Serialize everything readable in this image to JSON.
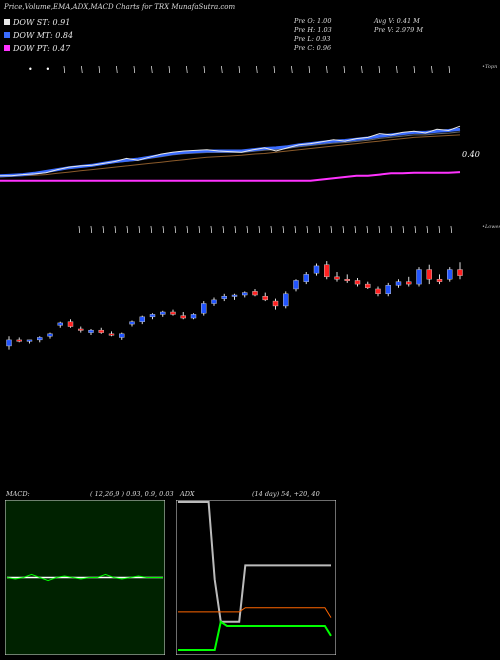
{
  "header": {
    "title": "Price,Volume,EMA,ADX,MACD Charts for TRX",
    "site": "MunafaSutra.com"
  },
  "legend": [
    {
      "label": "DOW ST: 0.91",
      "color": "#e8e8e8"
    },
    {
      "label": "DOW MT: 0.84",
      "color": "#3a6cff"
    },
    {
      "label": "DOW PT: 0.47",
      "color": "#ff33ff"
    }
  ],
  "stats": {
    "open": "Pre   O: 1.00",
    "high": "Pre   H: 1.03",
    "low": "Pre   L: 0.93",
    "close": "Pre   C: 0.96",
    "avg_vol": "Avg V: 0.41 M",
    "pre_vol": "Pre   V: 2.979 M"
  },
  "colors": {
    "up": "#2255ff",
    "down": "#ff2020",
    "st": "#e8e8e8",
    "mt": "#3a6cff",
    "pt": "#ff33ff",
    "ema_brown": "#8a5a2a",
    "macd_bg": "#002200",
    "macd_line": "#00ff00",
    "adx_plus": "#00ff00",
    "adx_minus": "#ff6600",
    "adx_line": "#bbbbbb"
  },
  "chart_data": [
    {
      "type": "line",
      "name": "ema-panel",
      "annotations": {
        "top_right": "•Topn",
        "value_label": "0.40"
      },
      "series": [
        {
          "name": "price",
          "values": [
            0.1,
            0.1,
            0.12,
            0.13,
            0.15,
            0.2,
            0.24,
            0.26,
            0.27,
            0.3,
            0.33,
            0.38,
            0.35,
            0.4,
            0.45,
            0.48,
            0.5,
            0.51,
            0.52,
            0.5,
            0.49,
            0.48,
            0.52,
            0.55,
            0.5,
            0.55,
            0.6,
            0.62,
            0.65,
            0.68,
            0.66,
            0.7,
            0.72,
            0.78,
            0.76,
            0.8,
            0.82,
            0.79,
            0.85,
            0.83,
            0.9
          ]
        },
        {
          "name": "ema-fast",
          "values": [
            0.1,
            0.11,
            0.12,
            0.14,
            0.17,
            0.2,
            0.23,
            0.25,
            0.27,
            0.3,
            0.33,
            0.35,
            0.37,
            0.4,
            0.43,
            0.46,
            0.48,
            0.49,
            0.5,
            0.5,
            0.5,
            0.5,
            0.52,
            0.54,
            0.55,
            0.57,
            0.6,
            0.62,
            0.64,
            0.66,
            0.67,
            0.69,
            0.71,
            0.74,
            0.76,
            0.78,
            0.8,
            0.8,
            0.82,
            0.83,
            0.85
          ]
        },
        {
          "name": "ema-slow",
          "values": [
            0.08,
            0.09,
            0.1,
            0.11,
            0.12,
            0.14,
            0.16,
            0.18,
            0.2,
            0.22,
            0.24,
            0.26,
            0.28,
            0.3,
            0.32,
            0.34,
            0.36,
            0.38,
            0.4,
            0.41,
            0.42,
            0.43,
            0.45,
            0.46,
            0.48,
            0.5,
            0.52,
            0.54,
            0.56,
            0.58,
            0.6,
            0.62,
            0.64,
            0.66,
            0.68,
            0.7,
            0.72,
            0.73,
            0.74,
            0.75,
            0.76
          ]
        },
        {
          "name": "pt",
          "values": [
            0.02,
            0.02,
            0.02,
            0.02,
            0.02,
            0.02,
            0.02,
            0.02,
            0.02,
            0.02,
            0.02,
            0.02,
            0.02,
            0.02,
            0.02,
            0.02,
            0.02,
            0.02,
            0.02,
            0.02,
            0.02,
            0.02,
            0.02,
            0.02,
            0.02,
            0.02,
            0.02,
            0.02,
            0.04,
            0.06,
            0.08,
            0.1,
            0.1,
            0.12,
            0.14,
            0.14,
            0.15,
            0.15,
            0.15,
            0.15,
            0.16
          ]
        }
      ]
    },
    {
      "type": "candlestick",
      "name": "price-panel",
      "annotations": {
        "top_right": "•Lowes"
      },
      "candles": [
        [
          0.25,
          0.33,
          0.22,
          0.3
        ],
        [
          0.3,
          0.32,
          0.28,
          0.29
        ],
        [
          0.29,
          0.3,
          0.27,
          0.3
        ],
        [
          0.3,
          0.33,
          0.28,
          0.32
        ],
        [
          0.33,
          0.36,
          0.31,
          0.35
        ],
        [
          0.42,
          0.45,
          0.4,
          0.44
        ],
        [
          0.45,
          0.47,
          0.4,
          0.41
        ],
        [
          0.39,
          0.41,
          0.36,
          0.38
        ],
        [
          0.36,
          0.39,
          0.34,
          0.38
        ],
        [
          0.38,
          0.4,
          0.35,
          0.36
        ],
        [
          0.35,
          0.37,
          0.33,
          0.34
        ],
        [
          0.32,
          0.36,
          0.3,
          0.35
        ],
        [
          0.43,
          0.46,
          0.41,
          0.45
        ],
        [
          0.45,
          0.5,
          0.43,
          0.49
        ],
        [
          0.49,
          0.52,
          0.47,
          0.51
        ],
        [
          0.51,
          0.54,
          0.49,
          0.53
        ],
        [
          0.53,
          0.55,
          0.5,
          0.51
        ],
        [
          0.5,
          0.53,
          0.47,
          0.48
        ],
        [
          0.48,
          0.52,
          0.47,
          0.51
        ],
        [
          0.52,
          0.62,
          0.5,
          0.6
        ],
        [
          0.6,
          0.65,
          0.58,
          0.63
        ],
        [
          0.64,
          0.68,
          0.62,
          0.66
        ],
        [
          0.66,
          0.68,
          0.63,
          0.67
        ],
        [
          0.67,
          0.7,
          0.65,
          0.69
        ],
        [
          0.7,
          0.72,
          0.66,
          0.67
        ],
        [
          0.66,
          0.69,
          0.62,
          0.63
        ],
        [
          0.62,
          0.64,
          0.55,
          0.58
        ],
        [
          0.58,
          0.7,
          0.56,
          0.68
        ],
        [
          0.72,
          0.8,
          0.7,
          0.79
        ],
        [
          0.78,
          0.86,
          0.76,
          0.84
        ],
        [
          0.85,
          0.93,
          0.83,
          0.91
        ],
        [
          0.92,
          0.95,
          0.8,
          0.82
        ],
        [
          0.82,
          0.86,
          0.78,
          0.8
        ],
        [
          0.8,
          0.84,
          0.77,
          0.79
        ],
        [
          0.79,
          0.81,
          0.74,
          0.76
        ],
        [
          0.76,
          0.78,
          0.72,
          0.73
        ],
        [
          0.72,
          0.74,
          0.66,
          0.68
        ],
        [
          0.68,
          0.77,
          0.66,
          0.75
        ],
        [
          0.75,
          0.8,
          0.73,
          0.78
        ],
        [
          0.78,
          0.82,
          0.74,
          0.76
        ],
        [
          0.76,
          0.9,
          0.74,
          0.88
        ],
        [
          0.88,
          0.92,
          0.76,
          0.8
        ],
        [
          0.8,
          0.84,
          0.76,
          0.78
        ],
        [
          0.8,
          0.9,
          0.78,
          0.88
        ],
        [
          0.88,
          0.94,
          0.8,
          0.83
        ]
      ]
    },
    {
      "type": "line",
      "name": "macd-panel",
      "title": "MACD:",
      "params": "( 12,26,9 ) 0.93,  0.9,  0.03",
      "series": [
        {
          "name": "macd",
          "values": [
            0.5,
            0.49,
            0.5,
            0.52,
            0.5,
            0.48,
            0.5,
            0.51,
            0.5,
            0.49,
            0.5,
            0.5,
            0.52,
            0.5,
            0.49,
            0.5,
            0.51,
            0.5,
            0.5,
            0.5
          ]
        },
        {
          "name": "signal",
          "values": [
            0.5,
            0.5,
            0.5,
            0.5,
            0.5,
            0.5,
            0.5,
            0.5,
            0.5,
            0.5,
            0.5,
            0.5,
            0.5,
            0.5,
            0.5,
            0.5,
            0.5,
            0.5,
            0.5,
            0.5
          ]
        }
      ]
    },
    {
      "type": "line",
      "name": "adx-panel",
      "title": "ADX",
      "params": "(14 day) 54,  +20,  40",
      "series": [
        {
          "name": "adx",
          "values": [
            100,
            100,
            100,
            100,
            100,
            100,
            45,
            15,
            15,
            15,
            15,
            55,
            55,
            55,
            55,
            55,
            55,
            55,
            55,
            55,
            55,
            55,
            55,
            55,
            55,
            55
          ]
        },
        {
          "name": "minus-di",
          "values": [
            22,
            22,
            22,
            22,
            22,
            22,
            22,
            22,
            22,
            22,
            22,
            25,
            25,
            25,
            25,
            25,
            25,
            25,
            25,
            25,
            25,
            25,
            25,
            25,
            25,
            18
          ]
        },
        {
          "name": "plus-di",
          "values": [
            -5,
            -5,
            -5,
            -5,
            -5,
            -5,
            -5,
            15,
            12,
            12,
            12,
            12,
            12,
            12,
            12,
            12,
            12,
            12,
            12,
            12,
            12,
            12,
            12,
            12,
            12,
            5
          ]
        }
      ]
    }
  ],
  "arrow_rows": {
    "top": [
      "•",
      "•",
      "\\",
      "\\",
      "\\",
      "\\",
      "\\",
      "\\",
      "\\",
      "\\",
      "\\",
      "\\",
      "\\",
      "\\",
      "\\",
      "\\",
      "\\",
      "\\",
      "\\",
      "\\",
      "\\",
      "\\",
      "\\",
      "\\",
      "\\"
    ],
    "mid": [
      "\\",
      "\\",
      "\\",
      "\\",
      "\\",
      "\\",
      "\\",
      "\\",
      "\\",
      "\\",
      "\\",
      "\\",
      "\\",
      "\\",
      "\\",
      "\\",
      "\\",
      "\\",
      "\\",
      "\\",
      "\\",
      "\\",
      "\\",
      "\\",
      "\\",
      "\\",
      "\\",
      "\\",
      "\\",
      "\\",
      "\\",
      "\\"
    ]
  }
}
